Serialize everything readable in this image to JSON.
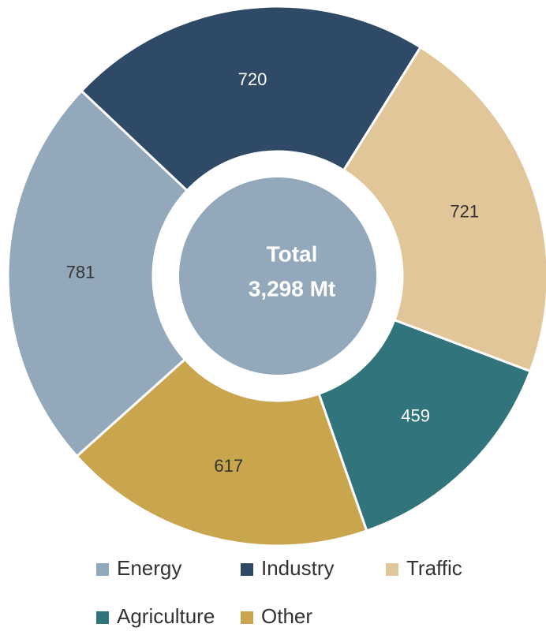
{
  "chart_data": {
    "type": "donut",
    "categories": [
      "Energy",
      "Industry",
      "Traffic",
      "Agriculture",
      "Other"
    ],
    "values": [
      781,
      720,
      721,
      459,
      617
    ],
    "colors": [
      "#94a8bb",
      "#2e4a66",
      "#e0c698",
      "#32747b",
      "#c9a54e"
    ],
    "center_title": "Total",
    "center_value": "3,298 Mt",
    "legend": "bottom"
  }
}
